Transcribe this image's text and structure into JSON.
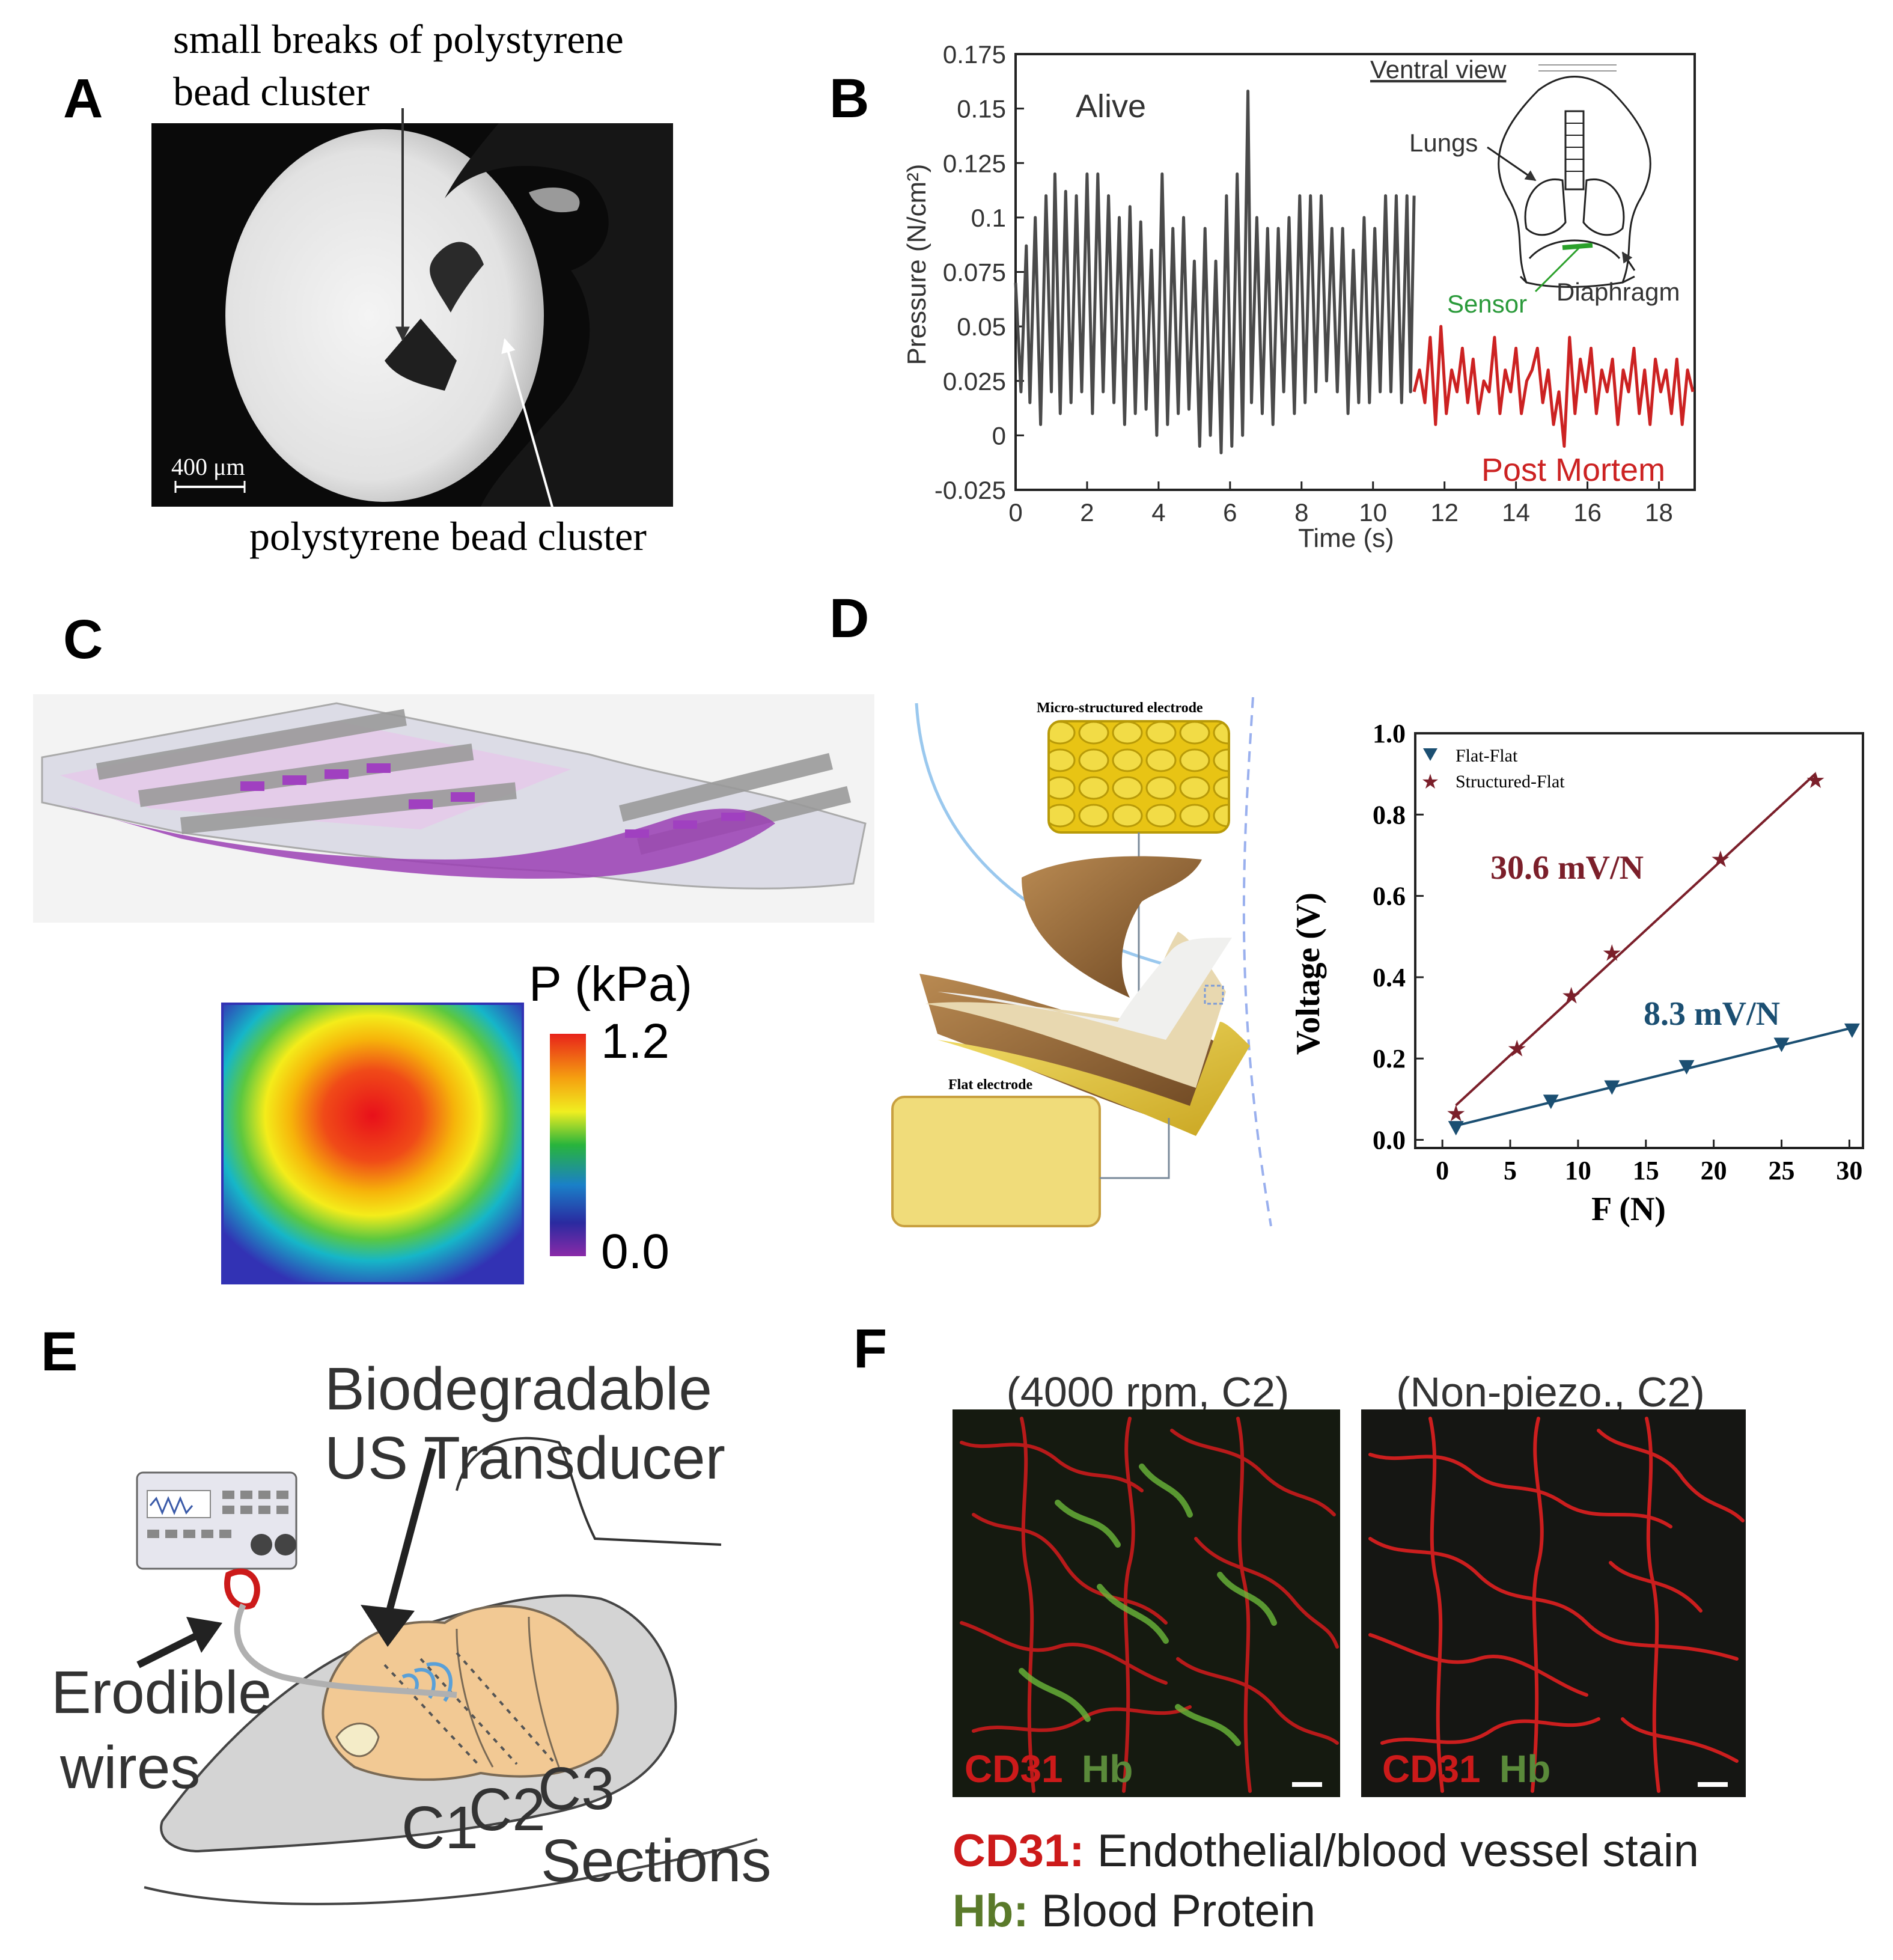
{
  "panels": {
    "a": {
      "letter": "A",
      "label_top_line1": "small breaks of  polystyrene",
      "label_top_line2": "bead cluster",
      "label_bottom": "polystyrene bead cluster",
      "scalebar": "400 μm"
    },
    "b": {
      "letter": "B",
      "alive": "Alive",
      "post_mortem": "Post Mortem",
      "inset": {
        "ventral_view": "Ventral view",
        "lungs": "Lungs",
        "sensor": "Sensor",
        "diaphragm": "Diaphragm"
      }
    },
    "c": {
      "letter": "C",
      "colorbar_title": "P (kPa)",
      "colorbar_max": "1.2",
      "colorbar_min": "0.0"
    },
    "d": {
      "letter": "D",
      "micro_label": "Micro-structured electrode",
      "flat_label": "Flat electrode",
      "slope_structured": "30.6 mV/N",
      "slope_flat": "8.3 mV/N"
    },
    "e": {
      "letter": "E",
      "title_line1": "Biodegradable",
      "title_line2": "US Transducer",
      "wires_line1": "Erodible",
      "wires_line2": "wires",
      "c1": "C1",
      "c2": "C2",
      "c3": "C3",
      "sections": "Sections"
    },
    "f": {
      "letter": "F",
      "title_left": "(4000 rpm, C2)",
      "title_right": "(Non-piezo., C2)",
      "cd31": "CD31",
      "hb": "Hb",
      "legend_cd31_key": "CD31:",
      "legend_cd31_text": " Endothelial/blood vessel stain",
      "legend_hb_key": "Hb:",
      "legend_hb_text": " Blood Protein"
    }
  },
  "chart_data": [
    {
      "type": "line",
      "panel": "B",
      "ylabel": "Pressure (N/cm²)",
      "xlabel": "Time (s)",
      "xlim": [
        0,
        19
      ],
      "ylim": [
        -0.025,
        0.175
      ],
      "xticks": [
        0,
        2,
        4,
        6,
        8,
        10,
        12,
        14,
        16,
        18
      ],
      "yticks": [
        -0.025,
        0,
        0.025,
        0.05,
        0.075,
        0.1,
        0.125,
        0.15,
        0.175
      ],
      "ytick_labels": [
        "-0.025",
        "0",
        "0.025",
        "0.05",
        "0.075",
        "0.1",
        "0.125",
        "0.15",
        "0.175"
      ],
      "series": [
        {
          "name": "Alive",
          "color": "#4a4a4a",
          "x": [
            0.0,
            0.15,
            0.3,
            0.4,
            0.55,
            0.7,
            0.85,
            1.0,
            1.1,
            1.25,
            1.4,
            1.55,
            1.7,
            1.85,
            2.0,
            2.15,
            2.3,
            2.45,
            2.6,
            2.75,
            2.9,
            3.05,
            3.2,
            3.35,
            3.5,
            3.65,
            3.8,
            3.95,
            4.1,
            4.25,
            4.4,
            4.55,
            4.7,
            4.85,
            5.0,
            5.15,
            5.3,
            5.45,
            5.6,
            5.75,
            5.9,
            6.05,
            6.2,
            6.35,
            6.5,
            6.6,
            6.75,
            6.9,
            7.05,
            7.2,
            7.35,
            7.5,
            7.65,
            7.8,
            7.95,
            8.1,
            8.25,
            8.4,
            8.55,
            8.7,
            8.85,
            9.0,
            9.15,
            9.3,
            9.45,
            9.6,
            9.75,
            9.9,
            10.05,
            10.2,
            10.35,
            10.5,
            10.65,
            10.8,
            10.95,
            11.05,
            11.15
          ],
          "y": [
            0.07,
            0.02,
            0.087,
            0.015,
            0.1,
            0.005,
            0.11,
            0.02,
            0.12,
            0.01,
            0.112,
            0.015,
            0.11,
            0.02,
            0.12,
            0.01,
            0.12,
            0.02,
            0.11,
            0.015,
            0.1,
            0.005,
            0.105,
            0.01,
            0.098,
            0.012,
            0.085,
            0.0,
            0.12,
            0.005,
            0.095,
            0.01,
            0.1,
            0.012,
            0.08,
            -0.005,
            0.095,
            0.0,
            0.08,
            -0.008,
            0.11,
            -0.005,
            0.12,
            0.0,
            0.158,
            0.015,
            0.1,
            0.01,
            0.095,
            0.005,
            0.095,
            0.02,
            0.1,
            0.01,
            0.11,
            0.015,
            0.11,
            0.02,
            0.11,
            0.025,
            0.095,
            0.02,
            0.095,
            0.01,
            0.085,
            0.015,
            0.1,
            0.015,
            0.095,
            0.02,
            0.11,
            0.02,
            0.11,
            0.015,
            0.11,
            0.02,
            0.11
          ]
        },
        {
          "name": "Post Mortem",
          "color": "#cc2222",
          "x": [
            11.15,
            11.3,
            11.45,
            11.6,
            11.75,
            11.9,
            12.05,
            12.2,
            12.35,
            12.5,
            12.65,
            12.8,
            12.95,
            13.1,
            13.25,
            13.4,
            13.55,
            13.7,
            13.85,
            14.0,
            14.15,
            14.3,
            14.45,
            14.6,
            14.75,
            14.9,
            15.05,
            15.2,
            15.35,
            15.5,
            15.65,
            15.8,
            15.95,
            16.1,
            16.25,
            16.4,
            16.55,
            16.7,
            16.85,
            17.0,
            17.15,
            17.3,
            17.45,
            17.6,
            17.75,
            17.9,
            18.05,
            18.2,
            18.35,
            18.5,
            18.65,
            18.8,
            18.95
          ],
          "y": [
            0.02,
            0.03,
            0.015,
            0.045,
            0.005,
            0.05,
            0.01,
            0.03,
            0.02,
            0.04,
            0.015,
            0.035,
            0.01,
            0.025,
            0.02,
            0.045,
            0.01,
            0.03,
            0.02,
            0.04,
            0.01,
            0.025,
            0.03,
            0.04,
            0.015,
            0.03,
            0.005,
            0.02,
            -0.005,
            0.045,
            0.01,
            0.035,
            0.02,
            0.04,
            0.01,
            0.03,
            0.02,
            0.035,
            0.005,
            0.03,
            0.02,
            0.04,
            0.01,
            0.03,
            0.005,
            0.035,
            0.02,
            0.03,
            0.01,
            0.035,
            0.005,
            0.03,
            0.02
          ]
        }
      ]
    },
    {
      "type": "scatter",
      "panel": "D",
      "xlabel": "F (N)",
      "ylabel": "Voltage (V)",
      "xlim": [
        -2,
        31
      ],
      "ylim": [
        -0.02,
        1.0
      ],
      "xticks": [
        0,
        5,
        10,
        15,
        20,
        25,
        30
      ],
      "yticks": [
        0.0,
        0.2,
        0.4,
        0.6,
        0.8,
        1.0
      ],
      "ytick_labels": [
        "0.0",
        "0.2",
        "0.4",
        "0.6",
        "0.8",
        "1.0"
      ],
      "legend_position": "top-left",
      "series": [
        {
          "name": "Flat-Flat",
          "color": "#1b4f72",
          "marker": "triangle-down",
          "x": [
            1,
            8,
            12.5,
            18,
            25,
            30.2
          ],
          "y": [
            0.03,
            0.095,
            0.13,
            0.18,
            0.235,
            0.27
          ]
        },
        {
          "name": "Structured-Flat",
          "color": "#7b1f2a",
          "marker": "star",
          "x": [
            1,
            5.5,
            9.5,
            12.5,
            20.5,
            27.5
          ],
          "y": [
            0.065,
            0.225,
            0.355,
            0.46,
            0.69,
            0.885
          ]
        }
      ]
    }
  ]
}
